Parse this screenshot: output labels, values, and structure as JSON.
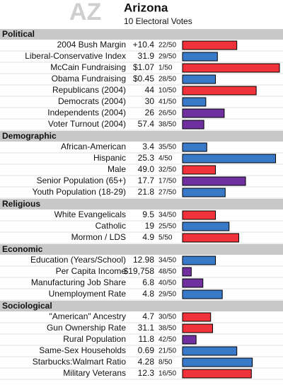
{
  "header": {
    "abbr": "AZ",
    "name": "Arizona",
    "subtitle": "10 Electoral Votes"
  },
  "sections": [
    {
      "title": "Political",
      "rows": [
        {
          "label": "2004 Bush Margin",
          "value": "+10.4",
          "rank": "22/50",
          "bar": 56,
          "color": "#f0323c"
        },
        {
          "label": "Liberal-Conservative Index",
          "value": "31.9",
          "rank": "29/50",
          "bar": 36,
          "color": "#3a78c8"
        },
        {
          "label": "McCain Fundraising",
          "value": "$1.07",
          "rank": "1/50",
          "bar": 100,
          "color": "#f0323c"
        },
        {
          "label": "Obama Fundraising",
          "value": "$0.45",
          "rank": "28/50",
          "bar": 34,
          "color": "#3a78c8"
        },
        {
          "label": "Republicans (2004)",
          "value": "44",
          "rank": "10/50",
          "bar": 76,
          "color": "#f0323c"
        },
        {
          "label": "Democrats (2004)",
          "value": "30",
          "rank": "41/50",
          "bar": 24,
          "color": "#3a78c8"
        },
        {
          "label": "Independents (2004)",
          "value": "26",
          "rank": "26/50",
          "bar": 43,
          "color": "#7030a0"
        },
        {
          "label": "Voter Turnout (2004)",
          "value": "57.4",
          "rank": "38/50",
          "bar": 22,
          "color": "#7030a0"
        }
      ]
    },
    {
      "title": "Demographic",
      "rows": [
        {
          "label": "African-American",
          "value": "3.4",
          "rank": "35/50",
          "bar": 25,
          "color": "#3a78c8"
        },
        {
          "label": "Hispanic",
          "value": "25.3",
          "rank": "4/50",
          "bar": 96,
          "color": "#3a78c8"
        },
        {
          "label": "Male",
          "value": "49.0",
          "rank": "32/50",
          "bar": 34,
          "color": "#f0323c"
        },
        {
          "label": "Senior Population (65+)",
          "value": "17.7",
          "rank": "17/50",
          "bar": 65,
          "color": "#7030a0"
        },
        {
          "label": "Youth Population (18-29)",
          "value": "21.8",
          "rank": "27/50",
          "bar": 44,
          "color": "#3a78c8"
        }
      ]
    },
    {
      "title": "Religious",
      "rows": [
        {
          "label": "White Evangelicals",
          "value": "9.5",
          "rank": "34/50",
          "bar": 34,
          "color": "#f0323c"
        },
        {
          "label": "Catholic",
          "value": "19",
          "rank": "25/50",
          "bar": 48,
          "color": "#3a78c8"
        },
        {
          "label": "Mormon / LDS",
          "value": "4.9",
          "rank": "5/50",
          "bar": 58,
          "color": "#f0323c"
        }
      ]
    },
    {
      "title": "Economic",
      "rows": [
        {
          "label": "Education (Years/School)",
          "value": "12.98",
          "rank": "34/50",
          "bar": 34,
          "color": "#3a78c8"
        },
        {
          "label": "Per Capita Income",
          "value": "$19,758",
          "rank": "48/50",
          "bar": 9,
          "color": "#7030a0"
        },
        {
          "label": "Manufacturing Job Share",
          "value": "6.8",
          "rank": "40/50",
          "bar": 21,
          "color": "#7030a0"
        },
        {
          "label": "Unemployment Rate",
          "value": "4.8",
          "rank": "29/50",
          "bar": 41,
          "color": "#3a78c8"
        }
      ]
    },
    {
      "title": "Sociological",
      "rows": [
        {
          "label": "\"American\" Ancestry",
          "value": "4.7",
          "rank": "30/50",
          "bar": 29,
          "color": "#f0323c"
        },
        {
          "label": "Gun Ownership Rate",
          "value": "31.1",
          "rank": "38/50",
          "bar": 31,
          "color": "#f0323c"
        },
        {
          "label": "Rural Population",
          "value": "11.8",
          "rank": "42/50",
          "bar": 14,
          "color": "#7030a0"
        },
        {
          "label": "Same-Sex Households",
          "value": "0.69",
          "rank": "21/50",
          "bar": 56,
          "color": "#3a78c8"
        },
        {
          "label": "Starbucks:Walmart Ratio",
          "value": "4.28",
          "rank": "8/50",
          "bar": 72,
          "color": "#3a78c8"
        },
        {
          "label": "Military Veterans",
          "value": "12.3",
          "rank": "16/50",
          "bar": 71,
          "color": "#f0323c"
        }
      ]
    }
  ]
}
